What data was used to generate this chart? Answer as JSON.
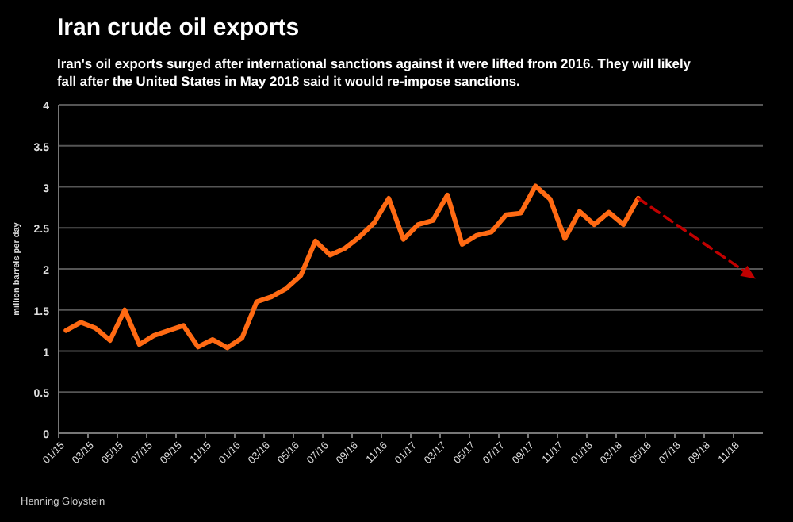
{
  "chart_data": {
    "type": "line",
    "title": "Iran crude oil exports",
    "subtitle": "Iran's oil exports surged after international sanctions against it were lifted from 2016. They will likely fall after the United States in May 2018 said it would re-impose sanctions.",
    "ylabel": "million barrels per day",
    "categories": [
      "01/15",
      null,
      "03/15",
      null,
      "05/15",
      null,
      "07/15",
      null,
      "09/15",
      null,
      "11/15",
      null,
      "01/16",
      null,
      "03/16",
      null,
      "05/16",
      null,
      "07/16",
      null,
      "09/16",
      null,
      "11/16",
      null,
      "01/17",
      null,
      "03/17",
      null,
      "05/17",
      null,
      "07/17",
      null,
      "09/17",
      null,
      "11/17",
      null,
      "01/18",
      null,
      "03/18",
      null,
      "05/18",
      null,
      "07/18",
      null,
      "09/18",
      null,
      "11/18",
      null
    ],
    "series": [
      {
        "color": "#ff6a13",
        "line_style": "solid",
        "values": [
          1.25,
          1.35,
          1.28,
          1.13,
          1.5,
          1.08,
          1.19,
          1.25,
          1.31,
          1.05,
          1.14,
          1.04,
          1.16,
          1.6,
          1.66,
          1.76,
          1.92,
          2.34,
          2.17,
          2.25,
          2.39,
          2.56,
          2.86,
          2.36,
          2.54,
          2.59,
          2.9,
          2.3,
          2.41,
          2.45,
          2.66,
          2.68,
          3.01,
          2.85,
          2.37,
          2.7,
          2.54,
          2.69,
          2.54,
          2.86,
          null,
          null,
          null,
          null,
          null,
          null,
          null,
          null
        ]
      },
      {
        "color": "#c00000",
        "line_style": "dashed",
        "values": [
          null,
          null,
          null,
          null,
          null,
          null,
          null,
          null,
          null,
          null,
          null,
          null,
          null,
          null,
          null,
          null,
          null,
          null,
          null,
          null,
          null,
          null,
          null,
          null,
          null,
          null,
          null,
          null,
          null,
          null,
          null,
          null,
          null,
          null,
          null,
          null,
          null,
          null,
          null,
          2.86,
          null,
          null,
          null,
          null,
          null,
          null,
          null,
          1.88
        ]
      }
    ],
    "ylim": [
      0,
      4
    ],
    "yticks": [
      0,
      0.5,
      1,
      1.5,
      2,
      2.5,
      3,
      3.5,
      4
    ],
    "grid": "y",
    "marker": "none",
    "annotations": [
      "Henning Gloystein"
    ]
  }
}
